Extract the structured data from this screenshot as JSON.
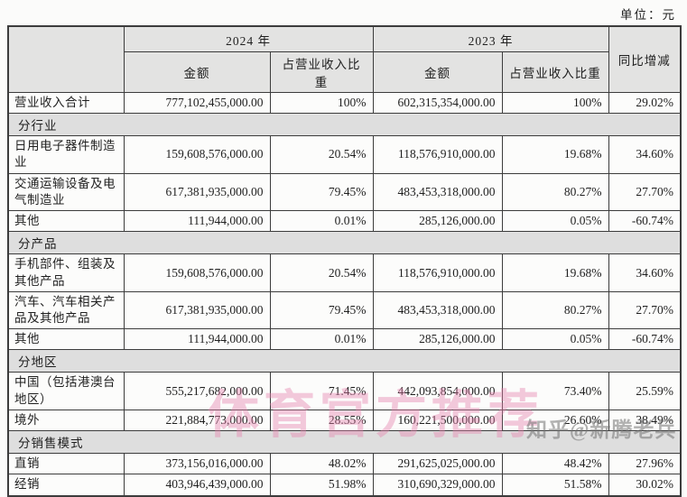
{
  "unit_label": "单位：元",
  "colors": {
    "border": "#3c3c3c",
    "header_bg": "#e3e3e2",
    "section_bg": "#dedede",
    "cell_bg": "#fcfcfb",
    "watermark_pink": "#e480ac",
    "watermark_gray": "#737373"
  },
  "table": {
    "header": {
      "year_2024": "2024 年",
      "year_2023": "2023 年",
      "amount": "金额",
      "pct": "占营业收入比重",
      "yoy": "同比增减"
    },
    "rows": [
      {
        "kind": "data",
        "label": "营业收入合计",
        "amount_2024": "777,102,455,000.00",
        "pct_2024": "100%",
        "amount_2023": "602,315,354,000.00",
        "pct_2023": "100%",
        "yoy": "29.02%"
      },
      {
        "kind": "section",
        "label": "分行业"
      },
      {
        "kind": "data",
        "label": "日用电子器件制造业",
        "amount_2024": "159,608,576,000.00",
        "pct_2024": "20.54%",
        "amount_2023": "118,576,910,000.00",
        "pct_2023": "19.68%",
        "yoy": "34.60%"
      },
      {
        "kind": "data",
        "label": "交通运输设备及电气制造业",
        "amount_2024": "617,381,935,000.00",
        "pct_2024": "79.45%",
        "amount_2023": "483,453,318,000.00",
        "pct_2023": "80.27%",
        "yoy": "27.70%"
      },
      {
        "kind": "data",
        "label": "其他",
        "amount_2024": "111,944,000.00",
        "pct_2024": "0.01%",
        "amount_2023": "285,126,000.00",
        "pct_2023": "0.05%",
        "yoy": "-60.74%"
      },
      {
        "kind": "section",
        "label": "分产品"
      },
      {
        "kind": "data",
        "label": "手机部件、组装及其他产品",
        "amount_2024": "159,608,576,000.00",
        "pct_2024": "20.54%",
        "amount_2023": "118,576,910,000.00",
        "pct_2023": "19.68%",
        "yoy": "34.60%"
      },
      {
        "kind": "data",
        "label": "汽车、汽车相关产品及其他产品",
        "amount_2024": "617,381,935,000.00",
        "pct_2024": "79.45%",
        "amount_2023": "483,453,318,000.00",
        "pct_2023": "80.27%",
        "yoy": "27.70%"
      },
      {
        "kind": "data",
        "label": "其他",
        "amount_2024": "111,944,000.00",
        "pct_2024": "0.01%",
        "amount_2023": "285,126,000.00",
        "pct_2023": "0.05%",
        "yoy": "-60.74%"
      },
      {
        "kind": "section",
        "label": "分地区"
      },
      {
        "kind": "data",
        "label": "中国（包括港澳台地区）",
        "amount_2024": "555,217,682,000.00",
        "pct_2024": "71.45%",
        "amount_2023": "442,093,854,000.00",
        "pct_2023": "73.40%",
        "yoy": "25.59%"
      },
      {
        "kind": "data",
        "label": "境外",
        "amount_2024": "221,884,773,000.00",
        "pct_2024": "28.55%",
        "amount_2023": "160,221,500,000.00",
        "pct_2023": "26.60%",
        "yoy": "38.49%"
      },
      {
        "kind": "section",
        "label": "分销售模式"
      },
      {
        "kind": "data",
        "label": "直销",
        "amount_2024": "373,156,016,000.00",
        "pct_2024": "48.02%",
        "amount_2023": "291,625,025,000.00",
        "pct_2023": "48.42%",
        "yoy": "27.96%"
      },
      {
        "kind": "data",
        "label": "经销",
        "amount_2024": "403,946,439,000.00",
        "pct_2024": "51.98%",
        "amount_2023": "310,690,329,000.00",
        "pct_2023": "51.58%",
        "yoy": "30.02%"
      }
    ]
  },
  "watermarks": {
    "center": "体育官方推荐",
    "corner": "知乎@新腾老兵"
  }
}
